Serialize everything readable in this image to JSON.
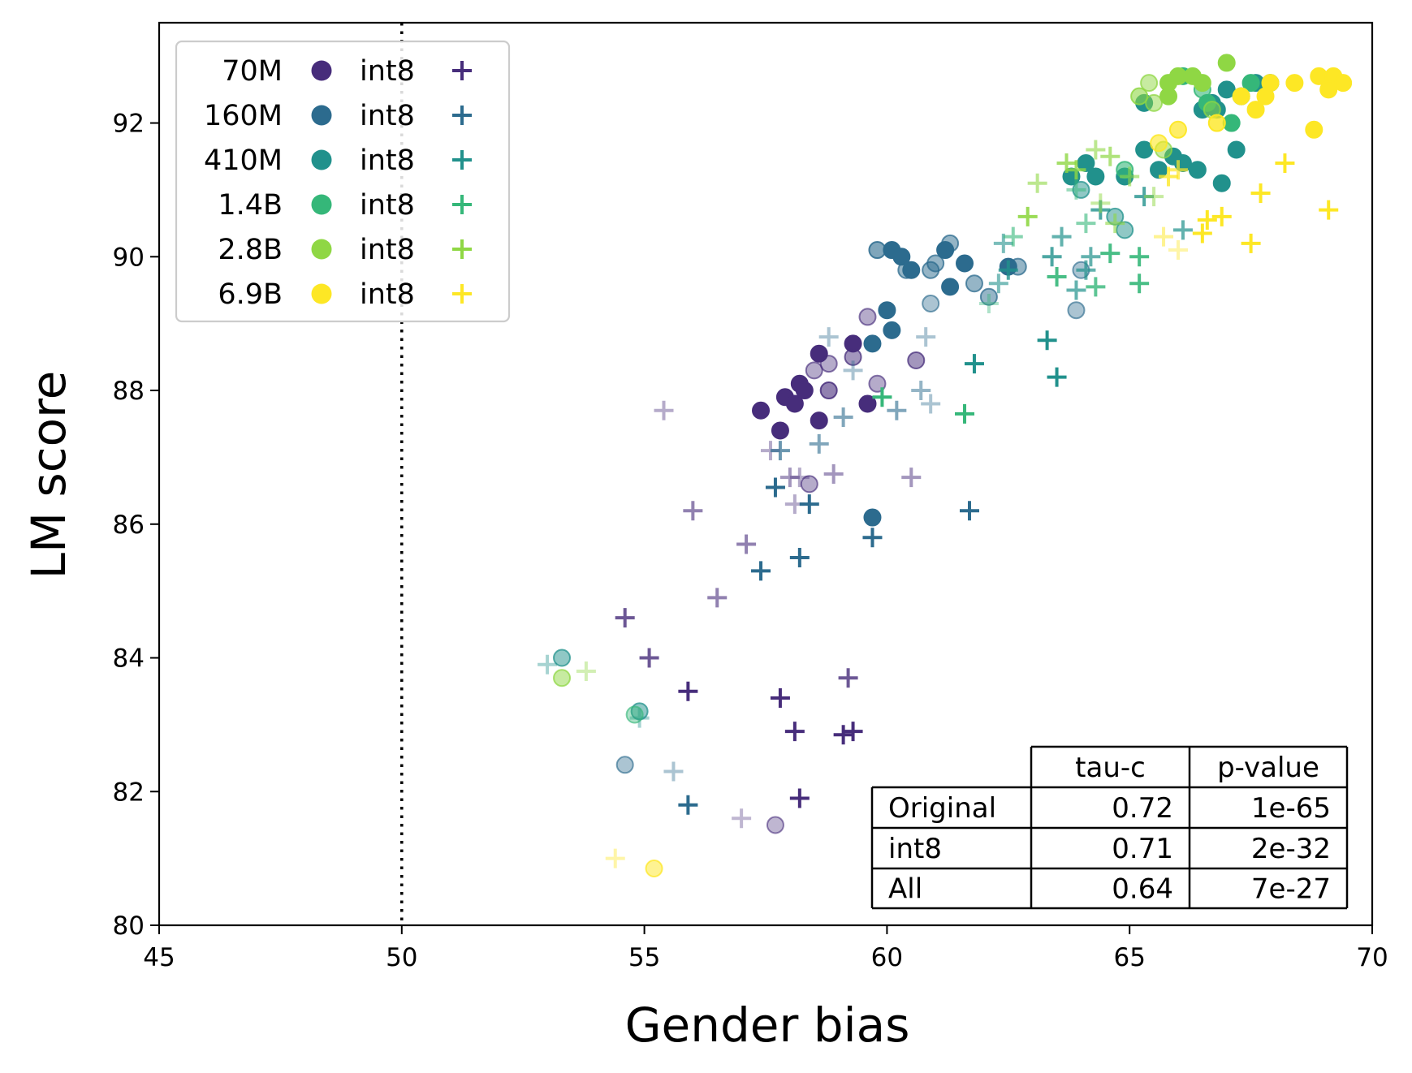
{
  "chart_data": {
    "type": "scatter",
    "title": "",
    "xlabel": "Gender bias",
    "ylabel": "LM score",
    "xlim": [
      45,
      70
    ],
    "ylim": [
      80,
      93.5
    ],
    "xticks": [
      "45",
      "50",
      "55",
      "60",
      "65",
      "70"
    ],
    "yticks": [
      "80",
      "82",
      "84",
      "86",
      "88",
      "90",
      "92"
    ],
    "reference_line": {
      "x": 50,
      "style": "dotted"
    },
    "legend_position": "upper-left",
    "series_colors": {
      "70M": "#472d7b",
      "160M": "#2c6b8e",
      "410M": "#21918c",
      "1.4B": "#35b779",
      "2.8B": "#8fd744",
      "6.9B": "#fde725"
    },
    "legend": [
      {
        "model": "70M",
        "variant": "int8"
      },
      {
        "model": "160M",
        "variant": "int8"
      },
      {
        "model": "410M",
        "variant": "int8"
      },
      {
        "model": "1.4B",
        "variant": "int8"
      },
      {
        "model": "2.8B",
        "variant": "int8"
      },
      {
        "model": "6.9B",
        "variant": "int8"
      }
    ],
    "table": {
      "columns": [
        "",
        "tau-c",
        "p-value"
      ],
      "rows": [
        [
          "Original",
          "0.72",
          "1e-65"
        ],
        [
          "int8",
          "0.71",
          "2e-32"
        ],
        [
          "All",
          "0.64",
          "7e-27"
        ]
      ]
    },
    "series": [
      {
        "model": "70M",
        "marker": "circle",
        "points": [
          [
            57.4,
            87.7,
            1
          ],
          [
            57.8,
            87.4,
            1
          ],
          [
            57.9,
            87.9,
            1
          ],
          [
            58.1,
            87.8,
            1
          ],
          [
            58.2,
            88.1,
            1
          ],
          [
            58.3,
            88.0,
            1
          ],
          [
            58.6,
            87.55,
            1
          ],
          [
            58.6,
            88.55,
            1
          ],
          [
            59.3,
            88.7,
            1
          ],
          [
            59.6,
            87.8,
            1
          ],
          [
            58.4,
            86.6,
            0.4
          ],
          [
            58.5,
            88.3,
            0.4
          ],
          [
            58.8,
            88.0,
            0.6
          ],
          [
            58.8,
            88.4,
            0.4
          ],
          [
            59.3,
            88.5,
            0.5
          ],
          [
            59.6,
            89.1,
            0.4
          ],
          [
            59.8,
            88.1,
            0.4
          ],
          [
            60.6,
            88.45,
            0.5
          ],
          [
            57.7,
            81.5,
            0.35
          ]
        ]
      },
      {
        "model": "70M",
        "marker": "plus",
        "points": [
          [
            54.6,
            84.6,
            0.8
          ],
          [
            55.1,
            84.0,
            0.8
          ],
          [
            55.9,
            83.5,
            1
          ],
          [
            57.8,
            83.4,
            1
          ],
          [
            58.1,
            82.9,
            1
          ],
          [
            58.2,
            81.9,
            1
          ],
          [
            59.1,
            82.85,
            1
          ],
          [
            59.3,
            82.9,
            1
          ],
          [
            59.2,
            83.7,
            0.8
          ],
          [
            56.0,
            86.2,
            0.6
          ],
          [
            56.5,
            84.9,
            0.6
          ],
          [
            57.1,
            85.7,
            0.6
          ],
          [
            57.6,
            87.1,
            0.4
          ],
          [
            58.0,
            86.7,
            0.5
          ],
          [
            58.1,
            86.3,
            0.4
          ],
          [
            58.2,
            86.7,
            0.4
          ],
          [
            58.9,
            86.75,
            0.5
          ],
          [
            60.5,
            86.7,
            0.5
          ],
          [
            55.4,
            87.7,
            0.4
          ],
          [
            57.0,
            81.6,
            0.35
          ]
        ]
      },
      {
        "model": "160M",
        "marker": "circle",
        "points": [
          [
            59.7,
            88.7,
            1
          ],
          [
            60.0,
            89.2,
            1
          ],
          [
            60.1,
            88.9,
            1
          ],
          [
            59.7,
            86.1,
            1
          ],
          [
            60.5,
            89.8,
            1
          ],
          [
            61.3,
            89.55,
            1
          ],
          [
            61.6,
            89.9,
            1
          ],
          [
            61.2,
            90.1,
            1
          ],
          [
            60.1,
            90.1,
            1
          ],
          [
            60.3,
            90.0,
            1
          ],
          [
            62.5,
            89.85,
            1
          ],
          [
            59.8,
            90.1,
            0.6
          ],
          [
            60.4,
            89.8,
            0.5
          ],
          [
            60.9,
            89.8,
            0.5
          ],
          [
            61.0,
            89.9,
            0.5
          ],
          [
            61.3,
            90.2,
            0.5
          ],
          [
            61.8,
            89.6,
            0.5
          ],
          [
            62.1,
            89.4,
            0.5
          ],
          [
            62.7,
            89.85,
            0.5
          ],
          [
            60.9,
            89.3,
            0.4
          ],
          [
            63.9,
            89.2,
            0.4
          ],
          [
            64.0,
            89.8,
            0.4
          ],
          [
            54.6,
            82.4,
            0.4
          ]
        ]
      },
      {
        "model": "160M",
        "marker": "plus",
        "points": [
          [
            55.9,
            81.8,
            1
          ],
          [
            57.4,
            85.3,
            1
          ],
          [
            58.2,
            85.5,
            1
          ],
          [
            57.7,
            86.55,
            1
          ],
          [
            58.4,
            86.3,
            1
          ],
          [
            59.7,
            85.8,
            1
          ],
          [
            61.7,
            86.2,
            1
          ],
          [
            57.8,
            87.1,
            0.7
          ],
          [
            58.6,
            87.2,
            0.6
          ],
          [
            59.1,
            87.6,
            0.6
          ],
          [
            60.2,
            87.7,
            0.6
          ],
          [
            60.7,
            88.0,
            0.5
          ],
          [
            60.9,
            87.8,
            0.4
          ],
          [
            60.8,
            88.8,
            0.4
          ],
          [
            59.3,
            88.3,
            0.4
          ],
          [
            58.8,
            88.8,
            0.4
          ],
          [
            55.6,
            82.3,
            0.4
          ]
        ]
      },
      {
        "model": "410M",
        "marker": "circle",
        "points": [
          [
            63.8,
            91.2,
            1
          ],
          [
            64.1,
            91.4,
            1
          ],
          [
            64.3,
            91.2,
            1
          ],
          [
            64.9,
            91.2,
            1
          ],
          [
            65.3,
            91.6,
            1
          ],
          [
            65.6,
            91.3,
            1
          ],
          [
            65.9,
            91.5,
            1
          ],
          [
            66.1,
            91.4,
            1
          ],
          [
            66.4,
            91.3,
            1
          ],
          [
            66.5,
            92.2,
            1
          ],
          [
            66.7,
            92.3,
            1
          ],
          [
            67.0,
            92.5,
            1
          ],
          [
            67.3,
            92.4,
            1
          ],
          [
            67.6,
            92.6,
            1
          ],
          [
            67.9,
            92.6,
            1
          ],
          [
            66.9,
            91.1,
            1
          ],
          [
            67.2,
            91.6,
            1
          ],
          [
            65.3,
            92.3,
            1
          ],
          [
            66.8,
            92.2,
            1
          ],
          [
            64.0,
            91.0,
            0.5
          ],
          [
            64.7,
            90.6,
            0.5
          ],
          [
            64.9,
            90.4,
            0.5
          ],
          [
            53.3,
            84.0,
            0.5
          ],
          [
            54.9,
            83.2,
            0.5
          ]
        ]
      },
      {
        "model": "410M",
        "marker": "plus",
        "points": [
          [
            63.3,
            88.75,
            1
          ],
          [
            63.5,
            88.2,
            1
          ],
          [
            61.8,
            88.4,
            1
          ],
          [
            62.5,
            89.8,
            0.8
          ],
          [
            63.4,
            90.0,
            0.8
          ],
          [
            63.6,
            90.3,
            0.7
          ],
          [
            64.1,
            89.8,
            0.7
          ],
          [
            64.4,
            90.7,
            0.8
          ],
          [
            65.3,
            90.9,
            0.8
          ],
          [
            66.1,
            90.4,
            0.7
          ],
          [
            64.2,
            90.0,
            0.7
          ],
          [
            63.9,
            89.5,
            0.7
          ],
          [
            62.3,
            89.6,
            0.6
          ],
          [
            62.4,
            90.2,
            0.6
          ],
          [
            53.0,
            83.9,
            0.4
          ],
          [
            54.9,
            83.1,
            0.4
          ]
        ]
      },
      {
        "model": "1.4B",
        "marker": "circle",
        "points": [
          [
            66.1,
            92.7,
            1
          ],
          [
            66.6,
            92.3,
            1
          ],
          [
            67.5,
            92.6,
            1
          ],
          [
            67.1,
            92.0,
            1
          ],
          [
            64.9,
            91.3,
            0.6
          ],
          [
            66.5,
            92.5,
            0.6
          ],
          [
            54.8,
            83.15,
            0.4
          ]
        ]
      },
      {
        "model": "1.4B",
        "marker": "plus",
        "points": [
          [
            59.9,
            87.9,
            1
          ],
          [
            61.6,
            87.65,
            1
          ],
          [
            63.5,
            89.7,
            0.9
          ],
          [
            64.3,
            89.55,
            0.8
          ],
          [
            64.6,
            90.05,
            0.9
          ],
          [
            65.2,
            90.0,
            0.9
          ],
          [
            65.2,
            89.6,
            0.9
          ],
          [
            64.1,
            90.5,
            0.6
          ],
          [
            62.6,
            90.3,
            0.6
          ],
          [
            63.9,
            91.0,
            0.5
          ],
          [
            62.1,
            89.3,
            0.4
          ]
        ]
      },
      {
        "model": "2.8B",
        "marker": "circle",
        "points": [
          [
            65.8,
            92.6,
            1
          ],
          [
            66.0,
            92.7,
            1
          ],
          [
            66.3,
            92.7,
            1
          ],
          [
            66.5,
            92.6,
            1
          ],
          [
            67.0,
            92.9,
            1
          ],
          [
            65.8,
            92.4,
            1
          ],
          [
            65.2,
            92.4,
            0.6
          ],
          [
            65.5,
            92.3,
            0.5
          ],
          [
            65.7,
            91.6,
            0.5
          ],
          [
            65.4,
            92.6,
            0.5
          ],
          [
            66.7,
            92.2,
            0.5
          ],
          [
            53.3,
            83.7,
            0.5
          ]
        ]
      },
      {
        "model": "2.8B",
        "marker": "plus",
        "points": [
          [
            62.9,
            90.6,
            0.9
          ],
          [
            63.7,
            91.4,
            0.8
          ],
          [
            63.9,
            91.3,
            0.8
          ],
          [
            64.6,
            91.5,
            0.7
          ],
          [
            65.0,
            91.2,
            0.6
          ],
          [
            64.3,
            91.6,
            0.6
          ],
          [
            63.1,
            91.1,
            0.6
          ],
          [
            64.4,
            90.8,
            0.5
          ],
          [
            64.7,
            90.5,
            0.6
          ],
          [
            65.5,
            90.9,
            0.5
          ],
          [
            53.8,
            83.8,
            0.4
          ]
        ]
      },
      {
        "model": "6.9B",
        "marker": "circle",
        "points": [
          [
            68.9,
            92.7,
            1
          ],
          [
            69.2,
            92.7,
            1
          ],
          [
            69.4,
            92.6,
            1
          ],
          [
            69.1,
            92.5,
            1
          ],
          [
            67.9,
            92.6,
            1
          ],
          [
            68.4,
            92.6,
            1
          ],
          [
            67.3,
            92.4,
            1
          ],
          [
            67.6,
            92.2,
            1
          ],
          [
            68.8,
            91.9,
            1
          ],
          [
            67.8,
            92.4,
            1
          ],
          [
            66.8,
            92.0,
            0.8
          ],
          [
            66.0,
            91.9,
            0.7
          ],
          [
            65.6,
            91.7,
            0.6
          ],
          [
            55.2,
            80.85,
            0.5
          ]
        ]
      },
      {
        "model": "6.9B",
        "marker": "plus",
        "points": [
          [
            66.5,
            90.35,
            1
          ],
          [
            66.6,
            90.55,
            1
          ],
          [
            66.9,
            90.6,
            1
          ],
          [
            67.5,
            90.2,
            1
          ],
          [
            67.7,
            90.95,
            1
          ],
          [
            68.2,
            91.4,
            1
          ],
          [
            69.1,
            90.7,
            1
          ],
          [
            65.8,
            91.2,
            0.8
          ],
          [
            66.0,
            91.3,
            0.7
          ],
          [
            65.7,
            90.3,
            0.5
          ],
          [
            66.0,
            90.1,
            0.4
          ],
          [
            54.4,
            81.0,
            0.4
          ]
        ]
      }
    ]
  }
}
